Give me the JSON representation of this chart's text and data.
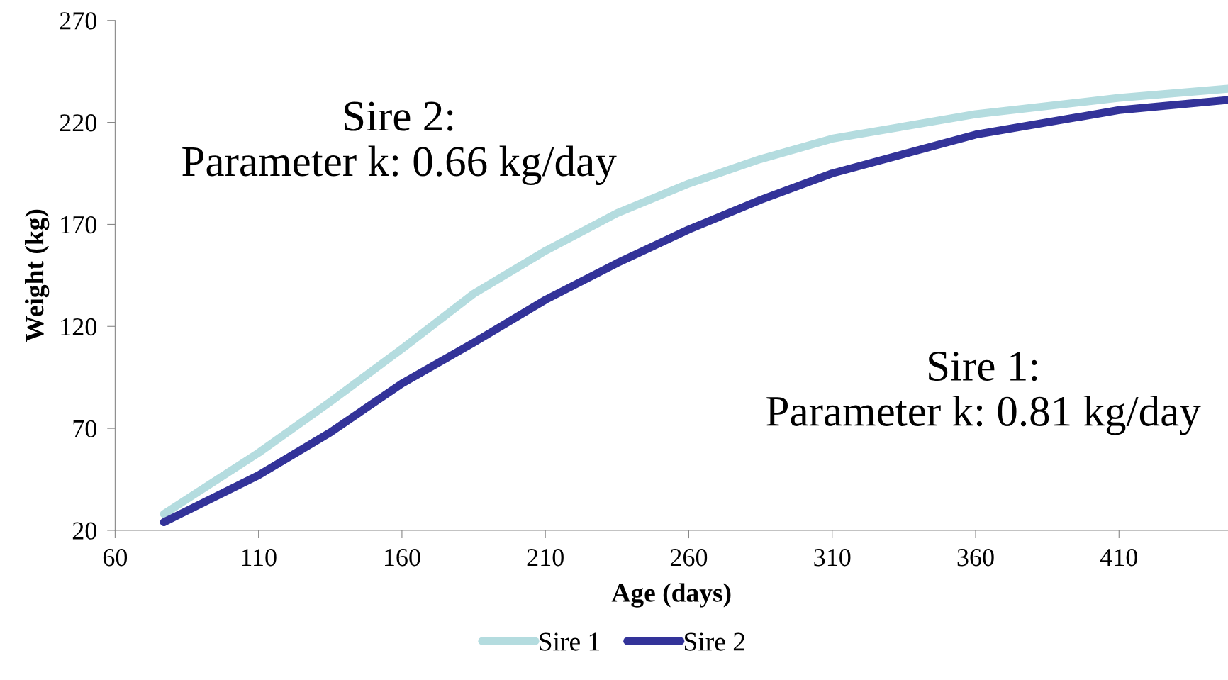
{
  "chart_data": {
    "type": "line",
    "xlabel": "Age (days)",
    "ylabel": "Weight (kg)",
    "xlim": [
      60,
      448
    ],
    "xticks": [
      60,
      110,
      160,
      210,
      260,
      310,
      360,
      410
    ],
    "ylim": [
      20,
      270
    ],
    "yticks": [
      20,
      70,
      120,
      170,
      220,
      270
    ],
    "grid": false,
    "legend": "bottom",
    "marker": "none",
    "line_style": "solid",
    "x": [
      77,
      110,
      135,
      160,
      185,
      210,
      235,
      260,
      285,
      310,
      360,
      410,
      448
    ],
    "series": [
      {
        "name": "Sire 1",
        "color": "#b4dcdf",
        "values": [
          28,
          58,
          83,
          109,
          136,
          157,
          175.5,
          190,
          202,
          212,
          224,
          232,
          236.5
        ]
      },
      {
        "name": "Sire 2",
        "color": "#333399",
        "values": [
          24,
          47,
          68,
          92,
          112,
          133,
          151,
          167.5,
          182,
          195,
          214,
          226,
          231
        ]
      }
    ],
    "annotations": [
      "Sire 2:\nParameter k: 0.66 kg/day",
      "Sire 1:\nParameter k: 0.81 kg/day"
    ]
  }
}
